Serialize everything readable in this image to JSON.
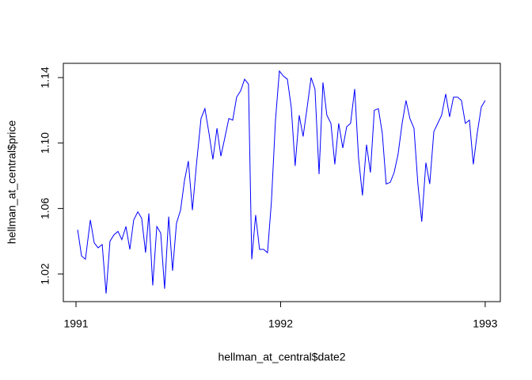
{
  "chart_data": {
    "type": "line",
    "x_label": "hellman_at_central$date2",
    "y_label": "hellman_at_central$price",
    "x": [
      1991.008,
      1991.027,
      1991.046,
      1991.07,
      1991.089,
      1991.108,
      1991.128,
      1991.147,
      1991.166,
      1991.186,
      1991.205,
      1991.224,
      1991.244,
      1991.263,
      1991.282,
      1991.302,
      1991.321,
      1991.34,
      1991.356,
      1991.375,
      1991.395,
      1991.414,
      1991.433,
      1991.453,
      1991.472,
      1991.491,
      1991.511,
      1991.53,
      1991.549,
      1991.569,
      1991.588,
      1991.611,
      1991.63,
      1991.65,
      1991.669,
      1991.689,
      1991.708,
      1991.727,
      1991.747,
      1991.766,
      1991.785,
      1991.805,
      1991.824,
      1991.843,
      1991.859,
      1991.878,
      1991.897,
      1991.917,
      1991.936,
      1991.955,
      1991.975,
      1991.994,
      1992.013,
      1992.033,
      1992.052,
      1992.071,
      1992.091,
      1992.11,
      1992.13,
      1992.149,
      1992.168,
      1992.188,
      1992.207,
      1992.226,
      1992.246,
      1992.265,
      1992.284,
      1992.304,
      1992.323,
      1992.342,
      1992.362,
      1992.381,
      1992.4,
      1992.42,
      1992.439,
      1992.458,
      1992.478,
      1992.497,
      1992.516,
      1992.536,
      1992.555,
      1992.574,
      1992.594,
      1992.613,
      1992.632,
      1992.652,
      1992.671,
      1992.69,
      1992.71,
      1992.729,
      1992.749,
      1992.768,
      1992.787,
      1992.807,
      1992.826,
      1992.845,
      1992.865,
      1992.884,
      1992.903,
      1992.923,
      1992.942,
      1992.961,
      1992.981,
      1993.0
    ],
    "series": [
      {
        "name": "price",
        "color": "#0000ff",
        "values": [
          1.047,
          1.031,
          1.029,
          1.053,
          1.039,
          1.036,
          1.038,
          1.008,
          1.04,
          1.044,
          1.046,
          1.041,
          1.049,
          1.035,
          1.053,
          1.058,
          1.054,
          1.033,
          1.057,
          1.013,
          1.049,
          1.045,
          1.011,
          1.055,
          1.022,
          1.051,
          1.059,
          1.077,
          1.089,
          1.059,
          1.086,
          1.115,
          1.121,
          1.106,
          1.09,
          1.109,
          1.092,
          1.103,
          1.115,
          1.114,
          1.128,
          1.132,
          1.139,
          1.136,
          1.029,
          1.056,
          1.035,
          1.035,
          1.033,
          1.064,
          1.114,
          1.144,
          1.141,
          1.139,
          1.122,
          1.086,
          1.117,
          1.104,
          1.122,
          1.14,
          1.133,
          1.081,
          1.137,
          1.117,
          1.112,
          1.087,
          1.112,
          1.097,
          1.11,
          1.112,
          1.133,
          1.091,
          1.068,
          1.099,
          1.082,
          1.12,
          1.121,
          1.106,
          1.075,
          1.076,
          1.082,
          1.093,
          1.112,
          1.126,
          1.115,
          1.109,
          1.075,
          1.052,
          1.088,
          1.075,
          1.107,
          1.112,
          1.117,
          1.13,
          1.116,
          1.128,
          1.128,
          1.126,
          1.112,
          1.114,
          1.087,
          1.106,
          1.122,
          1.126
        ]
      }
    ],
    "xlim": [
      1990.938,
      1993.074
    ],
    "xticks": [
      1991,
      1992,
      1993
    ],
    "ylim": [
      1.0031,
      1.1487
    ],
    "yticks": [
      1.02,
      1.06,
      {
        "value": 1.1,
        "label": "1.10"
      },
      1.14
    ],
    "grid": false
  }
}
